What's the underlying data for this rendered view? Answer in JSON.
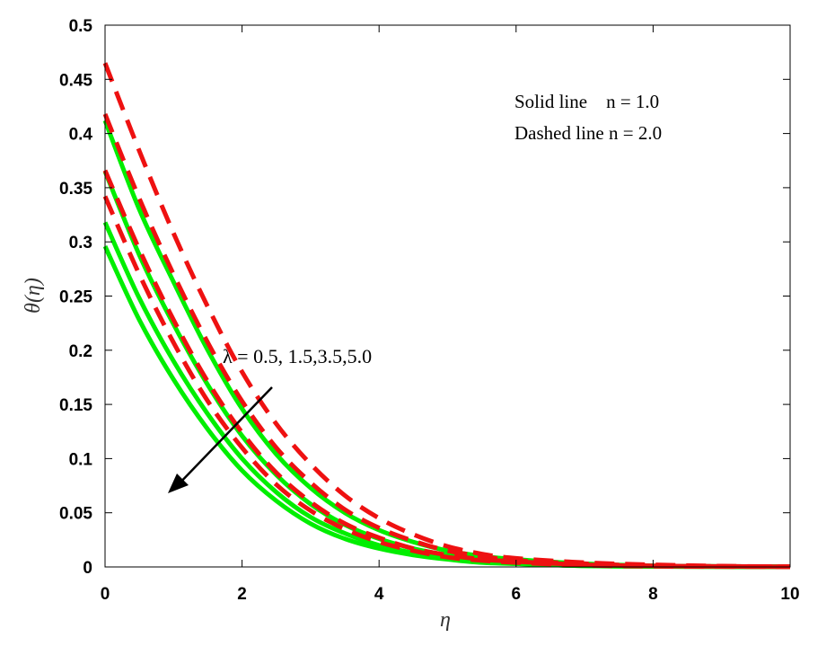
{
  "chart_data": {
    "type": "line",
    "title": "",
    "xlabel": "η",
    "ylabel": "θ(η)",
    "xlim": [
      0,
      10
    ],
    "ylim": [
      0,
      0.5
    ],
    "xticks": [
      0,
      2,
      4,
      6,
      8,
      10
    ],
    "yticks": [
      0,
      0.05,
      0.1,
      0.15,
      0.2,
      0.25,
      0.3,
      0.35,
      0.4,
      0.45,
      0.5
    ],
    "ytick_labels": [
      "0",
      "0.05",
      "0.1",
      "0.15",
      "0.2",
      "0.25",
      "0.3",
      "0.35",
      "0.4",
      "0.45",
      "0.5"
    ],
    "xtick_labels": [
      "0",
      "2",
      "4",
      "6",
      "8",
      "10"
    ],
    "grid": false,
    "legend_text": [
      "Solid line    n = 1.0",
      "Dashed line n = 2.0"
    ],
    "annotation": "λ = 0.5, 1.5,3.5,5.0",
    "colors": {
      "solid": "#00ee00",
      "dashed": "#ee1111"
    },
    "x": [
      0,
      0.5,
      1,
      1.5,
      2,
      2.5,
      3,
      3.5,
      4,
      4.5,
      5,
      5.5,
      6,
      7,
      8,
      9,
      10
    ],
    "series": [
      {
        "style": "solid",
        "values": [
          0.412,
          0.33,
          0.263,
          0.2,
          0.146,
          0.104,
          0.073,
          0.05,
          0.034,
          0.023,
          0.015,
          0.01,
          0.007,
          0.003,
          0.001,
          0.0005,
          0.0002
        ]
      },
      {
        "style": "solid",
        "values": [
          0.365,
          0.288,
          0.224,
          0.168,
          0.121,
          0.085,
          0.058,
          0.039,
          0.026,
          0.017,
          0.011,
          0.007,
          0.005,
          0.002,
          0.001,
          0.0004,
          0.0002
        ]
      },
      {
        "style": "solid",
        "values": [
          0.318,
          0.248,
          0.19,
          0.141,
          0.1,
          0.069,
          0.046,
          0.031,
          0.02,
          0.013,
          0.008,
          0.005,
          0.003,
          0.001,
          0.0005,
          0.0002,
          0.0001
        ]
      },
      {
        "style": "solid",
        "values": [
          0.296,
          0.228,
          0.173,
          0.127,
          0.089,
          0.061,
          0.04,
          0.026,
          0.017,
          0.011,
          0.007,
          0.004,
          0.003,
          0.001,
          0.0004,
          0.0002,
          0.0001
        ]
      },
      {
        "style": "dashed",
        "values": [
          0.465,
          0.384,
          0.308,
          0.24,
          0.18,
          0.132,
          0.095,
          0.066,
          0.045,
          0.03,
          0.019,
          0.012,
          0.008,
          0.004,
          0.002,
          0.0008,
          0.0003
        ]
      },
      {
        "style": "dashed",
        "values": [
          0.418,
          0.34,
          0.27,
          0.207,
          0.153,
          0.11,
          0.078,
          0.053,
          0.036,
          0.024,
          0.015,
          0.01,
          0.006,
          0.003,
          0.001,
          0.0006,
          0.0003
        ]
      },
      {
        "style": "dashed",
        "values": [
          0.366,
          0.293,
          0.228,
          0.171,
          0.124,
          0.087,
          0.06,
          0.04,
          0.027,
          0.017,
          0.011,
          0.007,
          0.005,
          0.002,
          0.001,
          0.0005,
          0.0002
        ]
      },
      {
        "style": "dashed",
        "values": [
          0.342,
          0.27,
          0.207,
          0.153,
          0.11,
          0.076,
          0.052,
          0.035,
          0.023,
          0.015,
          0.009,
          0.006,
          0.004,
          0.0015,
          0.0006,
          0.0003,
          0.0001
        ]
      }
    ]
  }
}
